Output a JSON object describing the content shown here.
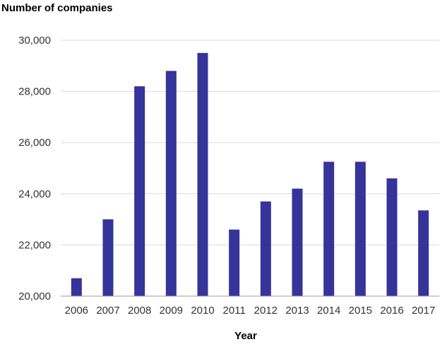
{
  "chart_data": {
    "type": "bar",
    "title": "",
    "ylabel": "Number of companies",
    "xlabel": "Year",
    "categories": [
      "2006",
      "2007",
      "2008",
      "2009",
      "2010",
      "2011",
      "2012",
      "2013",
      "2014",
      "2015",
      "2016",
      "2017"
    ],
    "values": [
      20700,
      23000,
      28200,
      28800,
      29500,
      22600,
      23700,
      24200,
      25250,
      25250,
      24600,
      23350
    ],
    "ylim": [
      20000,
      30000
    ],
    "yticks": [
      20000,
      22000,
      24000,
      26000,
      28000,
      30000
    ],
    "ytick_labels": [
      "20,000",
      "22,000",
      "24,000",
      "26,000",
      "28,000",
      "30,000"
    ],
    "bar_color": "#35349a",
    "grid": true,
    "legend": false
  }
}
